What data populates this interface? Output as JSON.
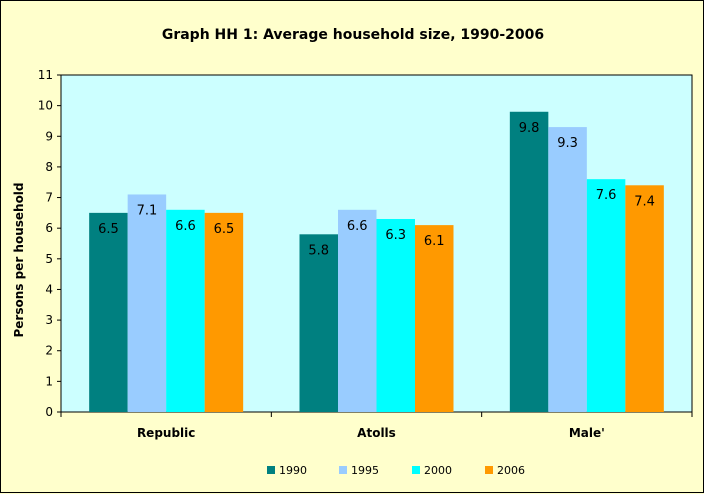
{
  "chart_data": {
    "type": "bar",
    "title": "Graph HH 1: Average household size, 1990-2006",
    "xlabel": "",
    "ylabel": "Persons per household",
    "ylim": [
      0,
      11
    ],
    "yticks": [
      0,
      1,
      2,
      3,
      4,
      5,
      6,
      7,
      8,
      9,
      10,
      11
    ],
    "categories": [
      "Republic",
      "Atolls",
      "Male'"
    ],
    "series": [
      {
        "name": "1990",
        "color": "#008080",
        "values": [
          6.5,
          5.8,
          9.8
        ]
      },
      {
        "name": "1995",
        "color": "#99CCFF",
        "values": [
          7.1,
          6.6,
          9.3
        ]
      },
      {
        "name": "2000",
        "color": "#00FFFF",
        "values": [
          6.6,
          6.3,
          7.6
        ]
      },
      {
        "name": "2006",
        "color": "#FF9900",
        "values": [
          6.5,
          6.1,
          7.4
        ]
      }
    ],
    "grid": false,
    "legend": "bottom",
    "plot_background": "#CCFFFF"
  }
}
